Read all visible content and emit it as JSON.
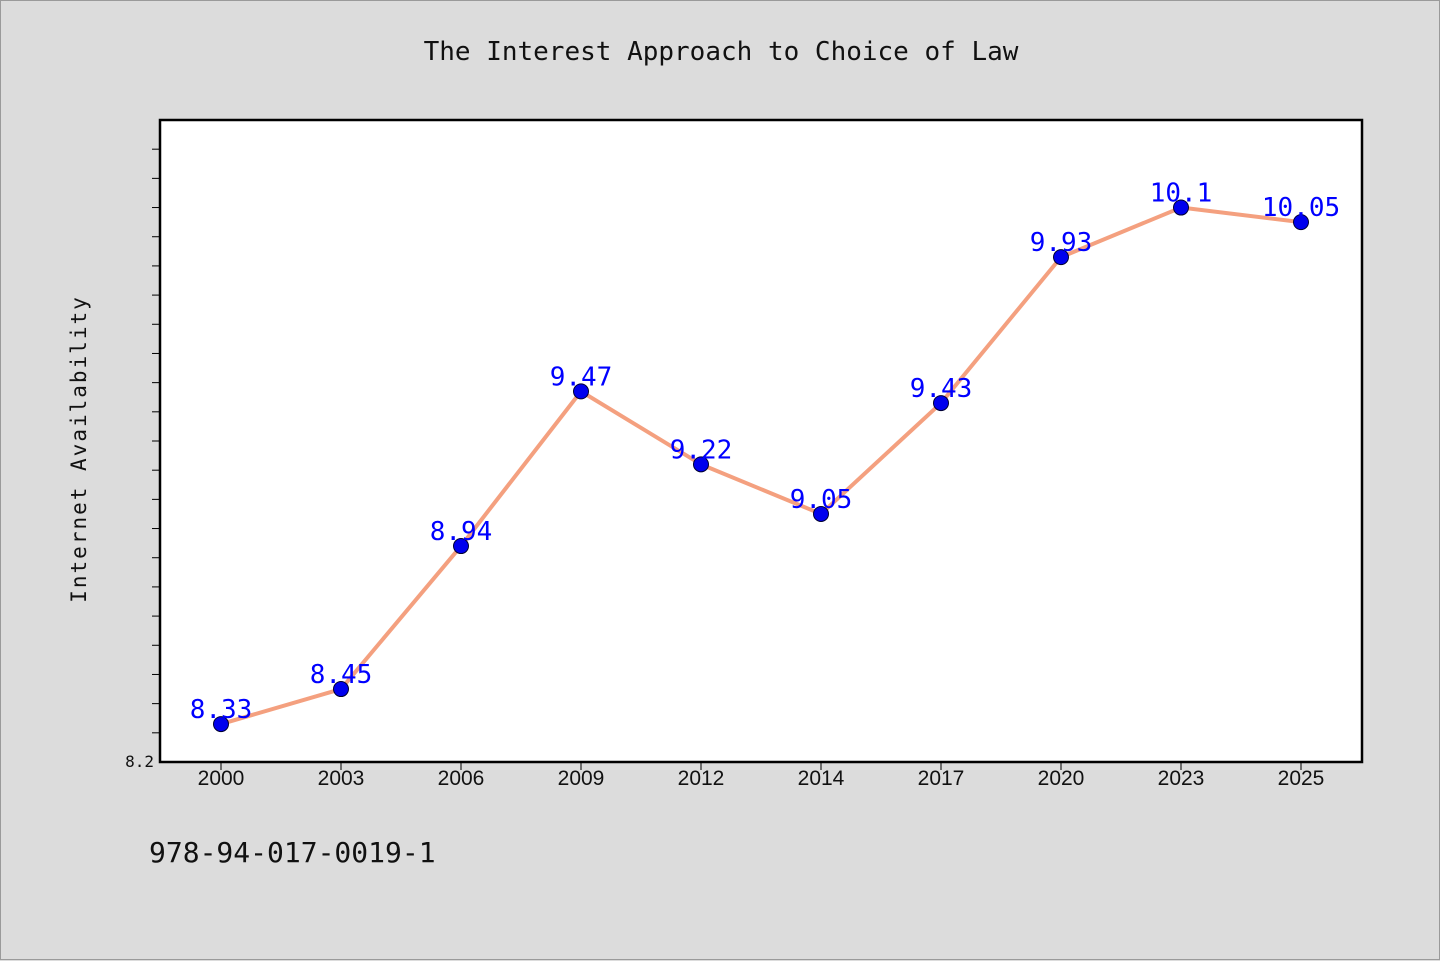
{
  "chart_data": {
    "type": "line",
    "title": "The Interest Approach to Choice of Law",
    "xlabel": "",
    "ylabel": "Internet Availability",
    "categories": [
      "2000",
      "2003",
      "2006",
      "2009",
      "2012",
      "2014",
      "2017",
      "2020",
      "2023",
      "2025"
    ],
    "values": [
      8.33,
      8.45,
      8.94,
      9.47,
      9.22,
      9.05,
      9.43,
      9.93,
      10.1,
      10.05
    ],
    "data_labels": [
      "8.33",
      "8.45",
      "8.94",
      "9.47",
      "9.22",
      "9.05",
      "9.43",
      "9.93",
      "10.1",
      "10.05"
    ],
    "ylim": [
      8.2,
      10.4
    ],
    "y_tick_labels": [
      "8.2"
    ],
    "grid": false,
    "line_color": "#f4a07f",
    "marker_color": "#0000ee",
    "label_color": "#0000ff"
  },
  "footer": {
    "isbn": "978-94-017-0019-1"
  }
}
